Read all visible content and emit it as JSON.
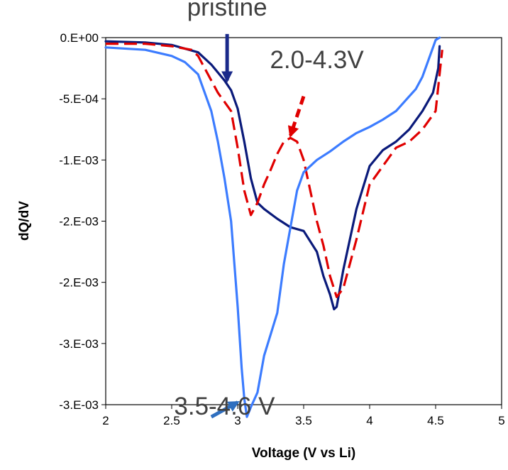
{
  "chart_data": {
    "type": "line",
    "title": "",
    "xlabel": "Voltage (V vs Li)",
    "ylabel": "dQ/dV",
    "xlim": [
      2,
      5
    ],
    "ylim": [
      -0.003,
      0
    ],
    "xticks": [
      {
        "value": 2,
        "label": "2"
      },
      {
        "value": 2.5,
        "label": "2.5"
      },
      {
        "value": 3,
        "label": "3"
      },
      {
        "value": 3.5,
        "label": "3.5"
      },
      {
        "value": 4,
        "label": "4"
      },
      {
        "value": 4.5,
        "label": "4.5"
      },
      {
        "value": 5,
        "label": "5"
      }
    ],
    "yticks": [
      {
        "value": 0,
        "label": "0.E+00"
      },
      {
        "value": -0.0005,
        "label": "-5.E-04"
      },
      {
        "value": -0.001,
        "label": "-1.E-03"
      },
      {
        "value": -0.0015,
        "label": "-2.E-03"
      },
      {
        "value": -0.002,
        "label": "-2.E-03"
      },
      {
        "value": -0.0025,
        "label": "-3.E-03"
      },
      {
        "value": -0.003,
        "label": "-3.E-03"
      }
    ],
    "grid": false,
    "legend": "none",
    "series": [
      {
        "key": "pristine",
        "color": "#0a1a7a",
        "dash": "solid",
        "x": [
          2.0,
          2.3,
          2.5,
          2.7,
          2.8,
          2.9,
          2.95,
          3.0,
          3.05,
          3.1,
          3.15,
          3.2,
          3.3,
          3.4,
          3.5,
          3.6,
          3.65,
          3.7,
          3.73,
          3.75,
          3.8,
          3.9,
          4.0,
          4.1,
          4.2,
          4.3,
          4.4,
          4.48,
          4.52,
          4.53
        ],
        "y": [
          -3e-05,
          -4e-05,
          -6e-05,
          -0.00012,
          -0.00022,
          -0.00035,
          -0.00043,
          -0.00058,
          -0.00085,
          -0.00115,
          -0.00135,
          -0.0014,
          -0.00148,
          -0.00155,
          -0.00158,
          -0.00175,
          -0.00195,
          -0.0021,
          -0.00222,
          -0.0022,
          -0.0019,
          -0.0014,
          -0.00105,
          -0.00092,
          -0.00085,
          -0.00075,
          -0.0006,
          -0.00045,
          -0.00025,
          -7e-05
        ]
      },
      {
        "key": "cycled-2.0-4.3",
        "color": "#e00000",
        "dash": "dashed",
        "x": [
          2.0,
          2.3,
          2.5,
          2.65,
          2.7,
          2.75,
          2.85,
          2.95,
          3.0,
          3.05,
          3.1,
          3.15,
          3.2,
          3.25,
          3.3,
          3.35,
          3.4,
          3.45,
          3.5,
          3.55,
          3.6,
          3.65,
          3.7,
          3.75,
          3.8,
          3.9,
          4.0,
          4.2,
          4.3,
          4.4,
          4.5,
          4.55
        ],
        "y": [
          -5e-05,
          -5e-05,
          -7e-05,
          -0.0001,
          -0.00015,
          -0.00025,
          -0.00045,
          -0.0006,
          -0.0009,
          -0.00125,
          -0.00145,
          -0.00135,
          -0.0012,
          -0.00108,
          -0.00095,
          -0.00085,
          -0.00082,
          -0.00085,
          -0.001,
          -0.00125,
          -0.0015,
          -0.0017,
          -0.00195,
          -0.00212,
          -0.00205,
          -0.00165,
          -0.0012,
          -0.0009,
          -0.00085,
          -0.00075,
          -0.0006,
          -0.0001
        ]
      },
      {
        "key": "cycled-3.5-4.6",
        "color": "#3c7cff",
        "dash": "solid",
        "x": [
          2.0,
          2.3,
          2.5,
          2.6,
          2.7,
          2.8,
          2.85,
          2.9,
          2.95,
          3.0,
          3.03,
          3.05,
          3.07,
          3.1,
          3.15,
          3.2,
          3.3,
          3.35,
          3.4,
          3.45,
          3.5,
          3.6,
          3.7,
          3.8,
          3.9,
          4.0,
          4.1,
          4.2,
          4.3,
          4.35,
          4.4,
          4.45,
          4.5,
          4.53
        ],
        "y": [
          -8e-05,
          -0.0001,
          -0.00015,
          -0.0002,
          -0.0003,
          -0.0006,
          -0.00085,
          -0.00115,
          -0.0015,
          -0.0022,
          -0.0027,
          -0.00295,
          -0.0031,
          -0.00302,
          -0.0029,
          -0.0026,
          -0.00225,
          -0.00185,
          -0.00155,
          -0.00125,
          -0.0011,
          -0.001,
          -0.00093,
          -0.00085,
          -0.00078,
          -0.00073,
          -0.00067,
          -0.0006,
          -0.00048,
          -0.00042,
          -0.00032,
          -0.00017,
          -2e-05,
          0
        ]
      }
    ],
    "annotations": [
      {
        "key": "pristine",
        "text": "pristine",
        "color": "#1a2a8a",
        "dash": "solid",
        "arrow_tail": [
          2.92,
          3e-05
        ],
        "arrow_head": [
          2.92,
          -0.00035
        ],
        "text_anchor": [
          2.92,
          0.00018
        ]
      },
      {
        "key": "2.0-4.3",
        "text": "2.0-4.3V",
        "color": "#e00000",
        "dash": "dashed",
        "arrow_tail": [
          3.5,
          -0.00048
        ],
        "arrow_head": [
          3.4,
          -0.0008
        ],
        "text_anchor": [
          3.6,
          -0.00025
        ]
      },
      {
        "key": "3.5-4.6",
        "text": "3.5-4.6 V",
        "color": "#2f6fbf",
        "dash": "solid",
        "arrow_tail": [
          2.8,
          -0.0031
        ],
        "arrow_head": [
          3.0,
          -0.00298
        ],
        "text_anchor": [
          2.9,
          -0.00308
        ]
      }
    ]
  }
}
